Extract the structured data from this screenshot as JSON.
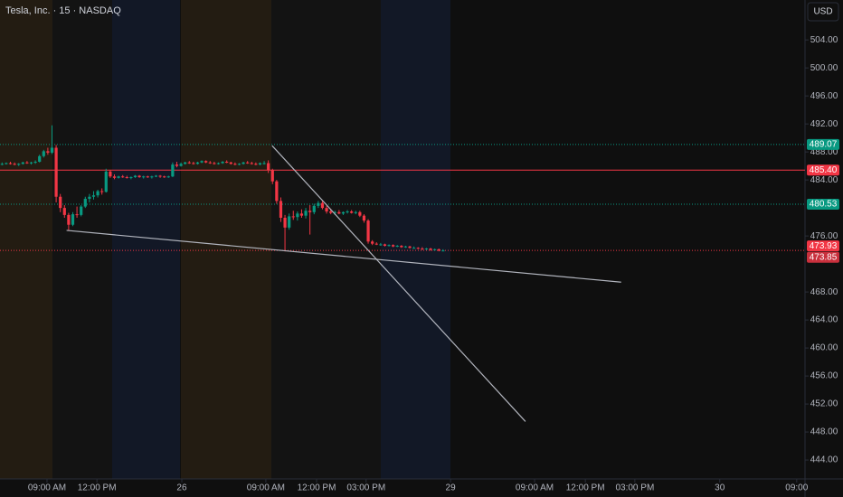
{
  "chart_data": {
    "type": "candlestick",
    "title": "Tesla, Inc. · 15 · NASDAQ",
    "currency": "USD",
    "up_color": "#089981",
    "down_color": "#f23645",
    "ylim": [
      441.3,
      509.7
    ],
    "yticks": [
      {
        "value": 504,
        "label": "504.00"
      },
      {
        "value": 500,
        "label": "500.00"
      },
      {
        "value": 496,
        "label": "496.00"
      },
      {
        "value": 492,
        "label": "492.00"
      },
      {
        "value": 488,
        "label": "488.00"
      },
      {
        "value": 484,
        "label": "484.00"
      },
      {
        "value": 476,
        "label": "476.00"
      },
      {
        "value": 468,
        "label": "468.00"
      },
      {
        "value": 464,
        "label": "464.00"
      },
      {
        "value": 460,
        "label": "460.00"
      },
      {
        "value": 456,
        "label": "456.00"
      },
      {
        "value": 452,
        "label": "452.00"
      },
      {
        "value": 448,
        "label": "448.00"
      },
      {
        "value": 444,
        "label": "444.00"
      }
    ],
    "xlim": [
      -0.5,
      193
    ],
    "xticks": [
      {
        "value": 10.8,
        "label": "09:00 AM"
      },
      {
        "value": 22.8,
        "label": "12:00 PM"
      },
      {
        "value": 43.2,
        "label": "26"
      },
      {
        "value": 63.4,
        "label": "09:00 AM"
      },
      {
        "value": 75.6,
        "label": "12:00 PM"
      },
      {
        "value": 87.5,
        "label": "03:00 PM"
      },
      {
        "value": 107.8,
        "label": "29"
      },
      {
        "value": 128,
        "label": "09:00 AM"
      },
      {
        "value": 140.2,
        "label": "12:00 PM"
      },
      {
        "value": 152.1,
        "label": "03:00 PM"
      },
      {
        "value": 172.5,
        "label": "30"
      },
      {
        "value": 191,
        "label": "09:00"
      }
    ],
    "x": [
      0,
      1,
      2,
      3,
      4,
      5,
      6,
      7,
      8,
      9,
      10,
      11,
      12,
      13,
      14,
      15,
      16,
      17,
      18,
      19,
      20,
      21,
      22,
      23,
      24,
      25,
      26,
      27,
      28,
      29,
      30,
      31,
      32,
      33,
      34,
      35,
      36,
      37,
      38,
      39,
      40,
      41,
      42,
      43,
      44,
      45,
      46,
      47,
      48,
      49,
      50,
      51,
      52,
      53,
      54,
      55,
      56,
      57,
      58,
      59,
      60,
      61,
      62,
      63,
      64,
      65,
      66,
      67,
      68,
      69,
      70,
      71,
      72,
      73,
      74,
      75,
      76,
      77,
      78,
      79,
      80,
      81,
      82,
      83,
      84,
      85,
      86,
      87,
      88,
      89,
      90,
      91,
      92,
      93,
      94,
      95,
      96,
      97,
      98,
      99,
      100,
      101,
      102,
      103,
      104,
      105,
      106
    ],
    "ohlc": [
      [
        486.3,
        486.5,
        486.1,
        486.3
      ],
      [
        486.3,
        486.5,
        486.2,
        486.4
      ],
      [
        486.4,
        486.6,
        486.2,
        486.3
      ],
      [
        486.3,
        486.5,
        486.1,
        486.2
      ],
      [
        486.2,
        486.4,
        486.0,
        486.3
      ],
      [
        486.3,
        486.6,
        486.2,
        486.5
      ],
      [
        486.5,
        486.7,
        486.3,
        486.4
      ],
      [
        486.4,
        486.6,
        486.2,
        486.5
      ],
      [
        486.5,
        486.8,
        486.3,
        486.6
      ],
      [
        486.6,
        487.6,
        486.5,
        487.4
      ],
      [
        487.4,
        488.3,
        487.2,
        488.1
      ],
      [
        488.1,
        488.6,
        487.6,
        487.9
      ],
      [
        487.9,
        491.8,
        487.7,
        488.6
      ],
      [
        488.6,
        489.0,
        480.8,
        481.6
      ],
      [
        481.6,
        482.0,
        479.4,
        480.0
      ],
      [
        480.0,
        480.4,
        478.6,
        479.0
      ],
      [
        479.0,
        479.3,
        476.8,
        477.6
      ],
      [
        477.6,
        479.4,
        477.4,
        479.1
      ],
      [
        479.1,
        480.2,
        478.6,
        479.0
      ],
      [
        479.0,
        480.4,
        478.8,
        480.2
      ],
      [
        480.2,
        481.6,
        480.0,
        481.3
      ],
      [
        481.3,
        482.0,
        480.8,
        481.6
      ],
      [
        481.6,
        482.4,
        481.2,
        481.8
      ],
      [
        481.8,
        482.6,
        481.5,
        482.4
      ],
      [
        482.4,
        482.8,
        481.9,
        482.3
      ],
      [
        482.3,
        485.6,
        482.2,
        485.2
      ],
      [
        485.2,
        485.4,
        484.3,
        484.5
      ],
      [
        484.5,
        484.8,
        484.1,
        484.3
      ],
      [
        484.3,
        484.6,
        484.2,
        484.5
      ],
      [
        484.5,
        484.7,
        484.3,
        484.4
      ],
      [
        484.4,
        484.6,
        484.2,
        484.3
      ],
      [
        484.3,
        484.5,
        484.1,
        484.4
      ],
      [
        484.4,
        484.7,
        484.3,
        484.6
      ],
      [
        484.6,
        484.7,
        484.3,
        484.4
      ],
      [
        484.4,
        484.6,
        484.2,
        484.5
      ],
      [
        484.5,
        484.6,
        484.3,
        484.4
      ],
      [
        484.4,
        484.6,
        484.2,
        484.5
      ],
      [
        484.5,
        484.7,
        484.4,
        484.6
      ],
      [
        484.6,
        484.7,
        484.3,
        484.5
      ],
      [
        484.5,
        484.6,
        484.3,
        484.4
      ],
      [
        484.4,
        484.6,
        484.3,
        484.5
      ],
      [
        484.5,
        486.5,
        484.4,
        486.2
      ],
      [
        486.2,
        486.6,
        485.8,
        486.0
      ],
      [
        486.0,
        486.5,
        485.9,
        486.3
      ],
      [
        486.3,
        486.6,
        486.2,
        486.5
      ],
      [
        486.5,
        486.7,
        486.3,
        486.4
      ],
      [
        486.4,
        486.6,
        486.2,
        486.3
      ],
      [
        486.3,
        486.6,
        486.2,
        486.5
      ],
      [
        486.5,
        486.8,
        486.4,
        486.7
      ],
      [
        486.7,
        486.8,
        486.4,
        486.5
      ],
      [
        486.5,
        486.7,
        486.3,
        486.4
      ],
      [
        486.4,
        486.6,
        486.2,
        486.3
      ],
      [
        486.3,
        486.5,
        486.2,
        486.4
      ],
      [
        486.4,
        486.7,
        486.3,
        486.6
      ],
      [
        486.6,
        486.8,
        486.4,
        486.5
      ],
      [
        486.5,
        486.6,
        486.2,
        486.3
      ],
      [
        486.3,
        486.5,
        486.1,
        486.2
      ],
      [
        486.2,
        486.4,
        486.1,
        486.3
      ],
      [
        486.3,
        486.6,
        486.2,
        486.5
      ],
      [
        486.5,
        486.7,
        486.3,
        486.4
      ],
      [
        486.4,
        486.6,
        486.2,
        486.3
      ],
      [
        486.3,
        486.5,
        486.1,
        486.2
      ],
      [
        486.2,
        486.5,
        486.1,
        486.4
      ],
      [
        486.4,
        486.7,
        486.2,
        486.4
      ],
      [
        486.4,
        486.8,
        485.0,
        485.4
      ],
      [
        485.4,
        485.6,
        483.4,
        483.8
      ],
      [
        483.8,
        484.0,
        480.6,
        481.0
      ],
      [
        481.0,
        481.5,
        478.0,
        478.6
      ],
      [
        478.6,
        479.0,
        473.8,
        477.2
      ],
      [
        477.2,
        479.2,
        476.9,
        478.8
      ],
      [
        478.8,
        479.6,
        478.3,
        478.7
      ],
      [
        478.7,
        479.5,
        478.2,
        479.2
      ],
      [
        479.2,
        479.8,
        478.6,
        478.9
      ],
      [
        478.9,
        480.0,
        478.5,
        479.6
      ],
      [
        479.6,
        480.4,
        476.2,
        479.4
      ],
      [
        479.4,
        480.6,
        479.1,
        480.3
      ],
      [
        480.3,
        481.0,
        480.0,
        480.7
      ],
      [
        480.7,
        481.0,
        479.8,
        480.0
      ],
      [
        480.0,
        480.3,
        479.2,
        479.5
      ],
      [
        479.5,
        479.9,
        479.1,
        479.3
      ],
      [
        479.3,
        479.6,
        479.0,
        479.4
      ],
      [
        479.4,
        479.7,
        479.1,
        479.2
      ],
      [
        479.2,
        479.5,
        479.0,
        479.4
      ],
      [
        479.4,
        479.7,
        479.2,
        479.5
      ],
      [
        479.5,
        479.7,
        479.2,
        479.3
      ],
      [
        479.3,
        479.6,
        479.1,
        479.4
      ],
      [
        479.4,
        479.6,
        478.7,
        478.9
      ],
      [
        478.9,
        479.1,
        477.9,
        478.2
      ],
      [
        478.2,
        478.4,
        474.9,
        475.2
      ],
      [
        475.2,
        475.4,
        474.7,
        474.9
      ],
      [
        474.9,
        475.1,
        474.7,
        474.8
      ],
      [
        474.8,
        475.0,
        474.6,
        474.8
      ],
      [
        474.8,
        474.9,
        474.5,
        474.6
      ],
      [
        474.6,
        474.8,
        474.5,
        474.7
      ],
      [
        474.7,
        474.8,
        474.4,
        474.5
      ],
      [
        474.5,
        474.7,
        474.4,
        474.6
      ],
      [
        474.6,
        474.7,
        474.3,
        474.4
      ],
      [
        474.4,
        474.6,
        474.3,
        474.5
      ],
      [
        474.5,
        474.6,
        474.2,
        474.3
      ],
      [
        474.3,
        474.5,
        474.2,
        474.3
      ],
      [
        474.3,
        474.4,
        474.1,
        474.2
      ],
      [
        474.2,
        474.4,
        474.0,
        474.1
      ],
      [
        474.1,
        474.3,
        474.0,
        474.2
      ],
      [
        474.2,
        474.3,
        473.9,
        474.0
      ],
      [
        474.0,
        474.2,
        473.9,
        474.1
      ],
      [
        474.1,
        474.2,
        473.8,
        473.9
      ],
      [
        473.9,
        474.1,
        473.8,
        473.93
      ]
    ],
    "price_lines": [
      {
        "value": 489.07,
        "label": "489.07",
        "color": "#089981",
        "dotted": true
      },
      {
        "value": 485.4,
        "label": "485.40",
        "color": "#f23645",
        "dotted": false
      },
      {
        "value": 480.53,
        "label": "480.53",
        "color": "#089981",
        "dotted": true
      },
      {
        "value": 473.93,
        "label": "473.93",
        "color": "#f23645",
        "dotted": true
      },
      {
        "value": 473.85,
        "label": "473.85",
        "color": "#c9303d",
        "dotted": false
      }
    ],
    "trendlines": [
      {
        "x": [
          15.5,
          148.8
        ],
        "y": [
          476.8,
          469.4
        ],
        "color": "#b2b5be"
      },
      {
        "x": [
          64.9,
          125.8
        ],
        "y": [
          488.9,
          449.5
        ],
        "color": "#b2b5be"
      }
    ]
  }
}
